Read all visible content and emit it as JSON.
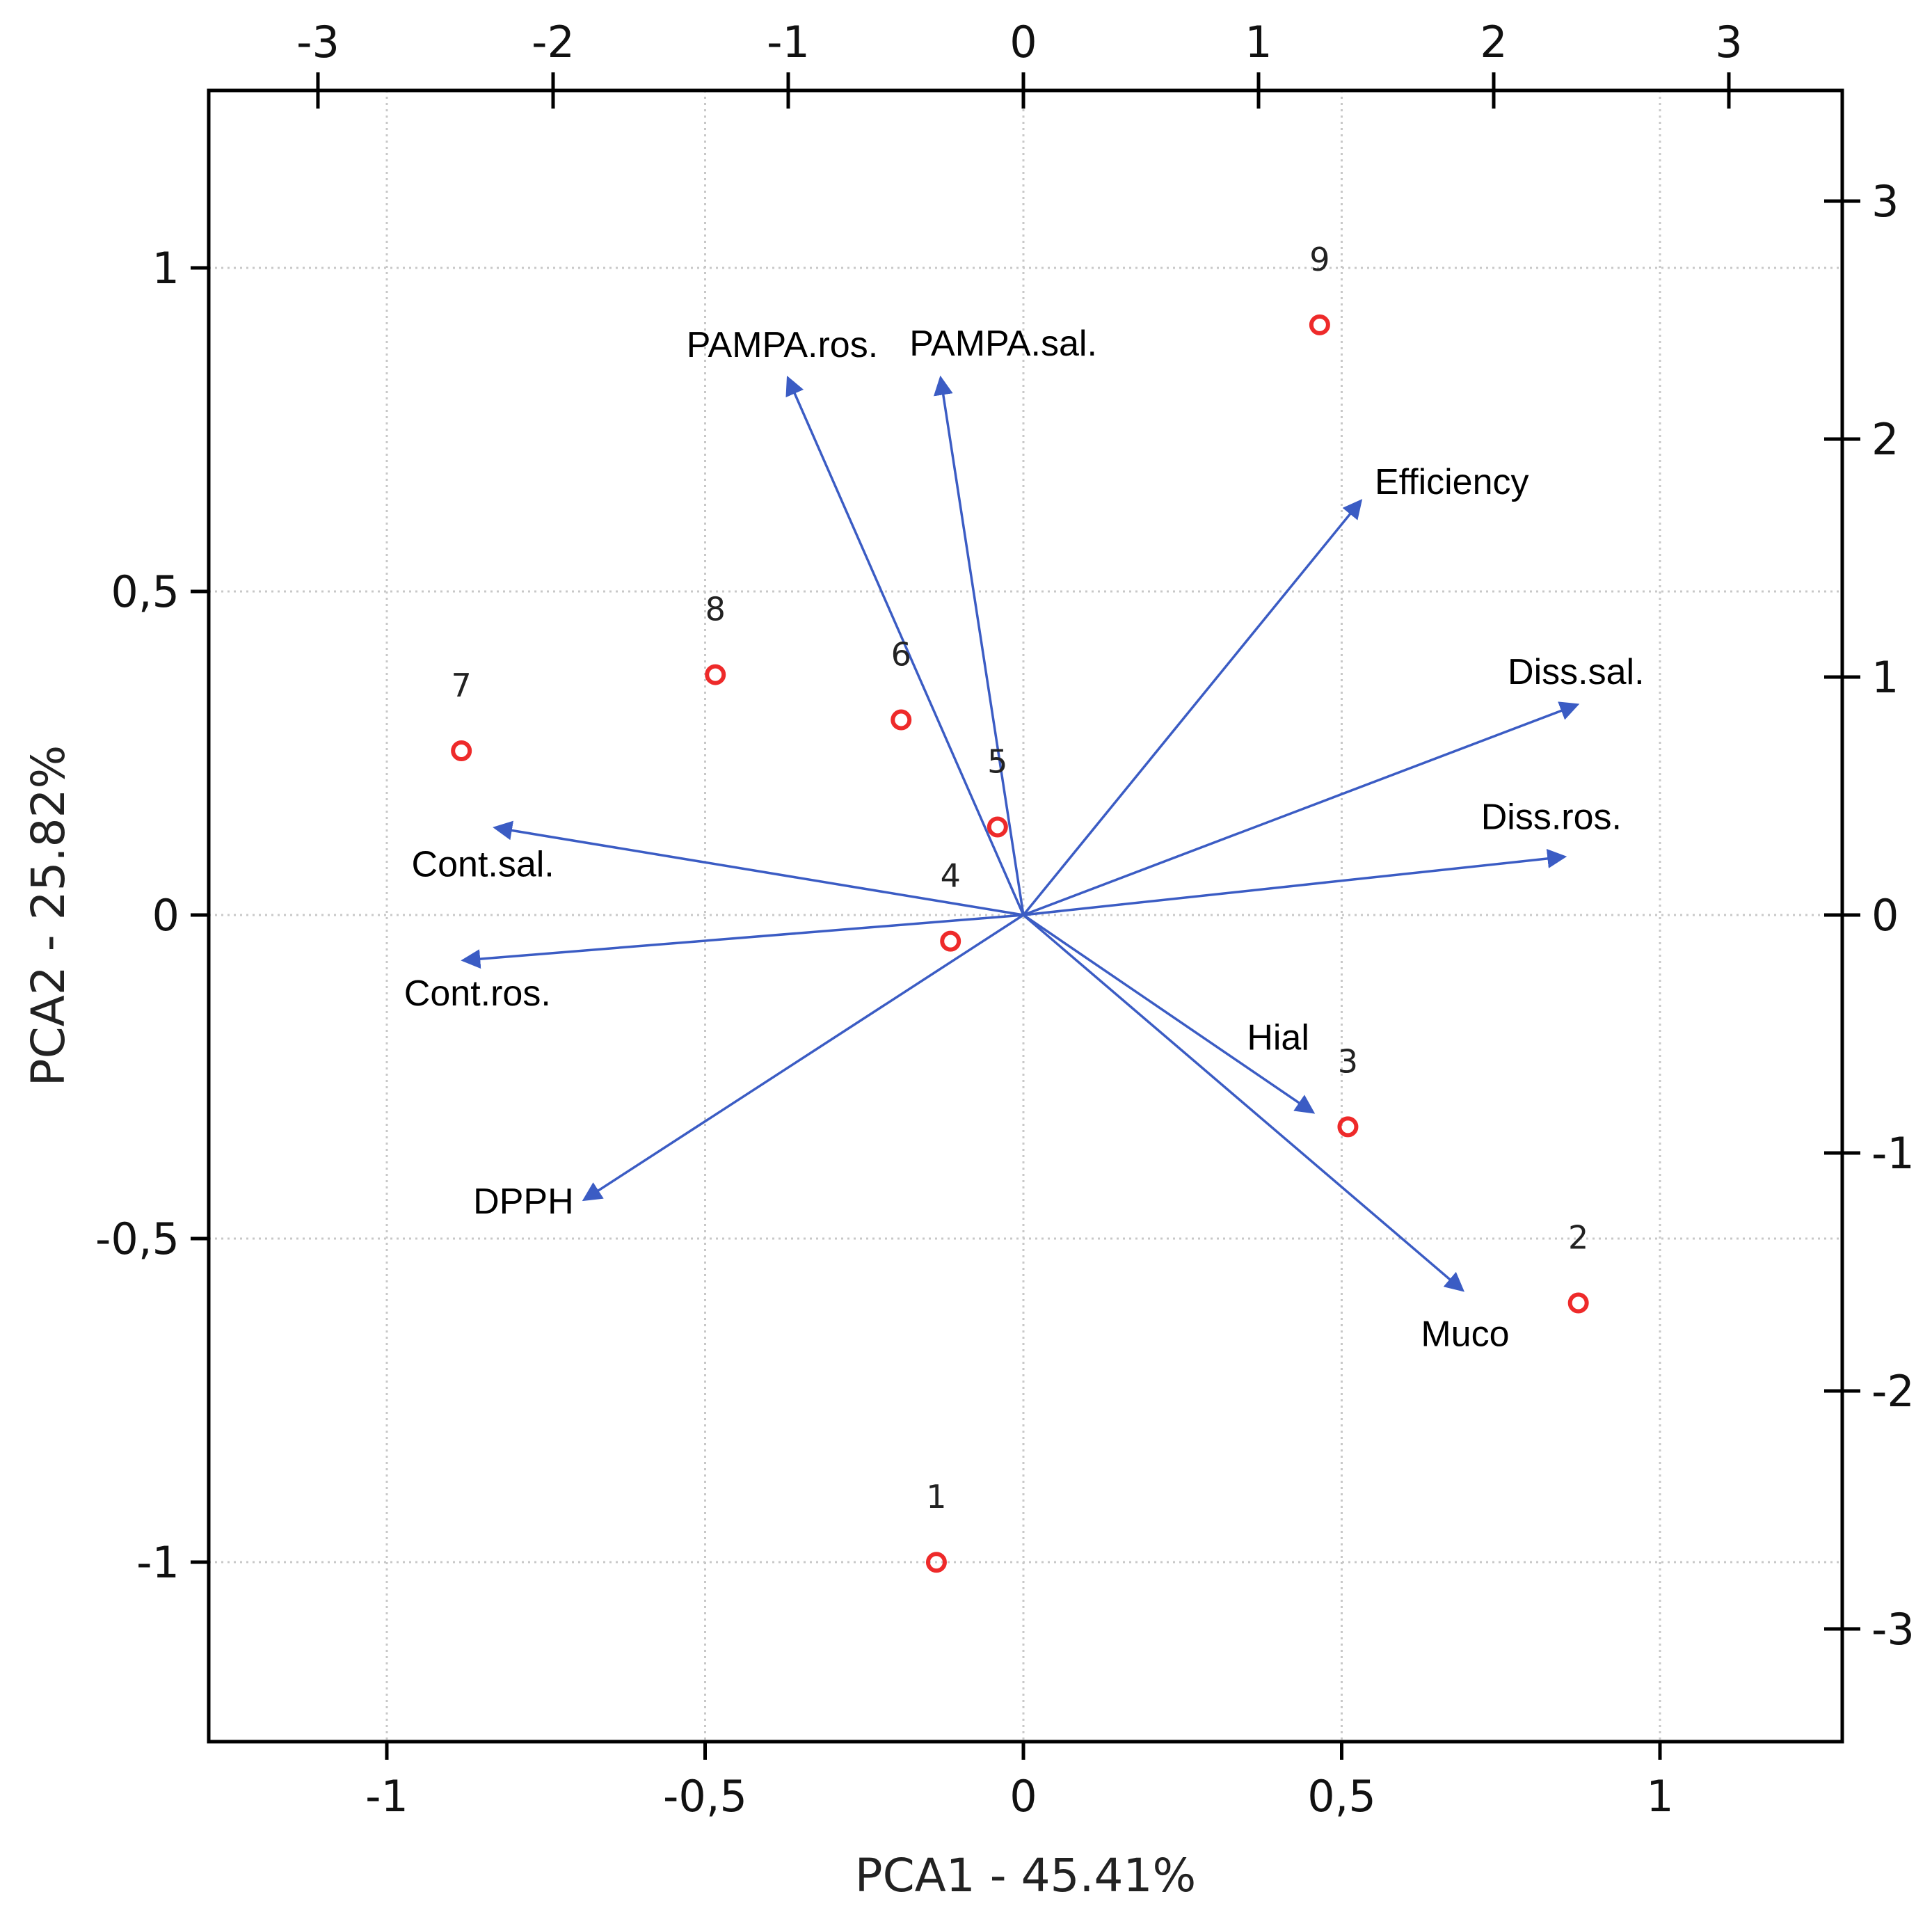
{
  "chart_data": {
    "type": "scatter",
    "subtype": "pca-biplot",
    "xlabel": "PCA1 - 45.41%",
    "ylabel": "PCA2 - 25.82%",
    "xlim": [
      -1.28,
      1.28
    ],
    "ylim": [
      -1.28,
      1.28
    ],
    "x_ticks": [
      -1,
      -0.5,
      0,
      0.5,
      1
    ],
    "y_ticks": [
      -1,
      -0.5,
      0,
      0.5,
      1
    ],
    "x_tick_labels": [
      "-1",
      "-0,5",
      "0",
      "0,5",
      "1"
    ],
    "y_tick_labels": [
      "-1",
      "-0,5",
      "0",
      "0,5",
      "1"
    ],
    "top_axis": {
      "ticks": [
        -3,
        -2,
        -1,
        0,
        1,
        2,
        3
      ],
      "labels": [
        "-3",
        "-2",
        "-1",
        "0",
        "1",
        "2",
        "3"
      ]
    },
    "right_axis": {
      "ticks": [
        -3,
        -2,
        -1,
        0,
        1,
        2,
        3
      ],
      "labels": [
        "-3",
        "-2",
        "-1",
        "0",
        "1",
        "2",
        "3"
      ]
    },
    "grid": true,
    "loadings": [
      {
        "name": "PAMPA.ros.",
        "x": -0.37,
        "y": 0.83
      },
      {
        "name": "PAMPA.sal.",
        "x": -0.13,
        "y": 0.83
      },
      {
        "name": "Efficiency",
        "x": 0.53,
        "y": 0.64
      },
      {
        "name": "Diss.sal.",
        "x": 0.87,
        "y": 0.325
      },
      {
        "name": "Diss.ros.",
        "x": 0.85,
        "y": 0.09
      },
      {
        "name": "Cont.sal.",
        "x": -0.83,
        "y": 0.135
      },
      {
        "name": "Cont.ros.",
        "x": -0.88,
        "y": -0.07
      },
      {
        "name": "DPPH",
        "x": -0.69,
        "y": -0.44
      },
      {
        "name": "Hial",
        "x": 0.455,
        "y": -0.305
      },
      {
        "name": "Muco",
        "x": 0.69,
        "y": -0.58
      }
    ],
    "scores": [
      {
        "label": "1",
        "pc1": -0.37,
        "pc2": -2.72
      },
      {
        "label": "2",
        "pc1": 2.36,
        "pc2": -1.63
      },
      {
        "label": "3",
        "pc1": 1.38,
        "pc2": -0.89
      },
      {
        "label": "4",
        "pc1": -0.31,
        "pc2": -0.11
      },
      {
        "label": "5",
        "pc1": -0.11,
        "pc2": 0.37
      },
      {
        "label": "6",
        "pc1": -0.52,
        "pc2": 0.82
      },
      {
        "label": "7",
        "pc1": -2.39,
        "pc2": 0.69
      },
      {
        "label": "8",
        "pc1": -1.31,
        "pc2": 1.01
      },
      {
        "label": "9",
        "pc1": 1.26,
        "pc2": 2.48
      }
    ],
    "colors": {
      "loading_arrows": "#3b5cc4",
      "score_points": "#ee2a2a",
      "grid": "#c8c8c8",
      "frame": "#000000"
    }
  }
}
